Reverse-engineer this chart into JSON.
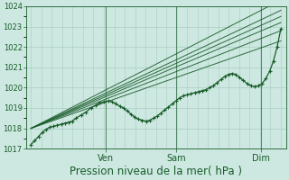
{
  "background_color": "#cce8e0",
  "plot_bg_color": "#cce8e0",
  "grid_color": "#aaccC4",
  "line_color": "#1a5c2a",
  "marker_color": "#1a5c2a",
  "xlabel": "Pression niveau de la mer( hPa )",
  "xlabel_fontsize": 8.5,
  "ylabel_min": 1017,
  "ylabel_max": 1024,
  "x_ticks_labels": [
    "Ven",
    "Sam",
    "Dim"
  ],
  "x_ticks_pos": [
    0.3,
    0.58,
    0.92
  ],
  "fan_lines": [
    [
      0.0,
      1018.0,
      1.0,
      1024.3
    ],
    [
      0.0,
      1018.0,
      1.0,
      1023.8
    ],
    [
      0.0,
      1018.0,
      1.0,
      1023.5
    ],
    [
      0.0,
      1018.0,
      1.0,
      1023.2
    ],
    [
      0.0,
      1018.0,
      1.0,
      1022.8
    ],
    [
      0.0,
      1018.0,
      1.0,
      1022.3
    ]
  ],
  "main_series_x": [
    0.0,
    0.015,
    0.03,
    0.045,
    0.06,
    0.075,
    0.09,
    0.105,
    0.12,
    0.135,
    0.15,
    0.165,
    0.18,
    0.2,
    0.22,
    0.24,
    0.26,
    0.275,
    0.29,
    0.31,
    0.325,
    0.34,
    0.355,
    0.37,
    0.385,
    0.4,
    0.415,
    0.43,
    0.445,
    0.46,
    0.475,
    0.49,
    0.505,
    0.52,
    0.535,
    0.55,
    0.565,
    0.58,
    0.595,
    0.61,
    0.625,
    0.64,
    0.655,
    0.67,
    0.685,
    0.7,
    0.715,
    0.73,
    0.745,
    0.76,
    0.775,
    0.79,
    0.805,
    0.82,
    0.835,
    0.85,
    0.865,
    0.88,
    0.895,
    0.91,
    0.925,
    0.94,
    0.955,
    0.97,
    0.985,
    1.0
  ],
  "main_series_y": [
    1017.2,
    1017.4,
    1017.6,
    1017.8,
    1017.95,
    1018.05,
    1018.1,
    1018.15,
    1018.2,
    1018.25,
    1018.3,
    1018.35,
    1018.5,
    1018.65,
    1018.8,
    1019.0,
    1019.15,
    1019.25,
    1019.3,
    1019.35,
    1019.3,
    1019.2,
    1019.1,
    1019.0,
    1018.85,
    1018.7,
    1018.55,
    1018.45,
    1018.4,
    1018.35,
    1018.4,
    1018.5,
    1018.6,
    1018.75,
    1018.9,
    1019.05,
    1019.2,
    1019.35,
    1019.5,
    1019.6,
    1019.65,
    1019.7,
    1019.75,
    1019.8,
    1019.85,
    1019.9,
    1020.0,
    1020.1,
    1020.25,
    1020.4,
    1020.55,
    1020.65,
    1020.7,
    1020.65,
    1020.5,
    1020.35,
    1020.2,
    1020.1,
    1020.05,
    1020.1,
    1020.2,
    1020.45,
    1020.8,
    1021.3,
    1022.0,
    1022.9
  ]
}
